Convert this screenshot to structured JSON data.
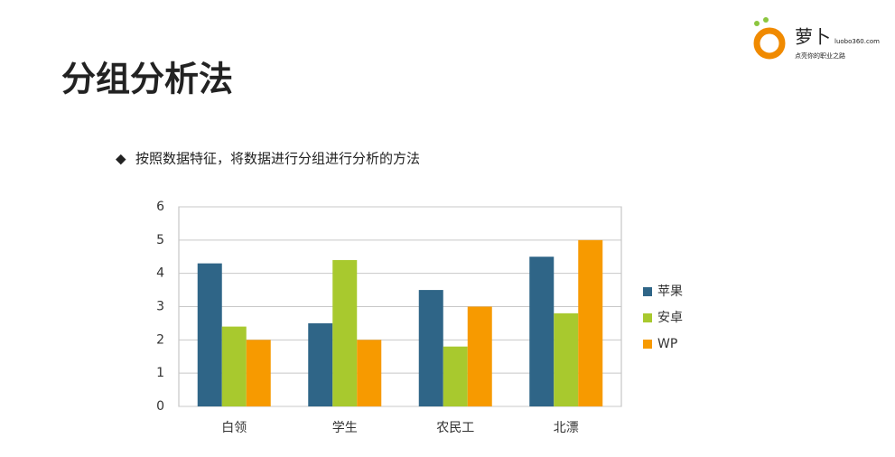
{
  "slide": {
    "title": "分组分析法",
    "bullet": "按照数据特征，将数据进行分组进行分析的方法",
    "logo": {
      "name": "萝卜",
      "url": "luobo360.com",
      "slogan": "点亮你的职业之路"
    }
  },
  "chart_data": {
    "type": "bar",
    "categories": [
      "白领",
      "学生",
      "农民工",
      "北漂"
    ],
    "series": [
      {
        "name": "苹果",
        "color": "#2f6587",
        "values": [
          4.3,
          2.5,
          3.5,
          4.5
        ]
      },
      {
        "name": "安卓",
        "color": "#a8c92e",
        "values": [
          2.4,
          4.4,
          1.8,
          2.8
        ]
      },
      {
        "name": "WP",
        "color": "#f79a00",
        "values": [
          2,
          2,
          3,
          5
        ]
      }
    ],
    "ylim": [
      0,
      6
    ],
    "yticks": [
      0,
      1,
      2,
      3,
      4,
      5,
      6
    ],
    "grid": true,
    "legend": "right"
  }
}
